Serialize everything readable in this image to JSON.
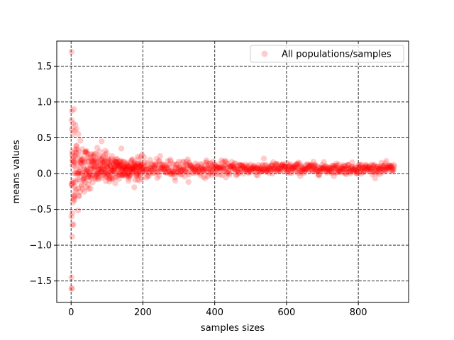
{
  "chart_data": {
    "type": "scatter",
    "xlabel": "samples sizes",
    "ylabel": "means values",
    "xlim": [
      -40,
      940
    ],
    "ylim": [
      -1.8,
      1.85
    ],
    "xticks": [
      0,
      200,
      400,
      600,
      800
    ],
    "yticks": [
      -1.5,
      -1.0,
      -0.5,
      0.0,
      0.5,
      1.0,
      1.5
    ],
    "xtick_labels": [
      "0",
      "200",
      "400",
      "600",
      "800"
    ],
    "ytick_labels": [
      "−1.5",
      "−1.0",
      "−0.5",
      "0.0",
      "0.5",
      "1.0",
      "1.5"
    ],
    "grid": true,
    "legend_position": "top-right",
    "series": [
      {
        "name": "All populations/samples",
        "color": "#ff0000",
        "alpha": 0.2,
        "x_range": [
          1,
          900
        ],
        "mean_level": 0.07,
        "points": [
          [
            1,
            1.7
          ],
          [
            1,
            -1.45
          ],
          [
            1,
            -1.61
          ],
          [
            2,
            -1.6
          ],
          [
            1,
            -0.6
          ],
          [
            3,
            -0.55
          ],
          [
            4,
            -0.72
          ],
          [
            2,
            0.62
          ],
          [
            5,
            0.55
          ],
          [
            8,
            0.9
          ],
          [
            6,
            0.7
          ],
          [
            10,
            0.6
          ],
          [
            12,
            0.68
          ],
          [
            15,
            0.62
          ],
          [
            20,
            0.55
          ],
          [
            3,
            -0.88
          ],
          [
            5,
            -0.4
          ],
          [
            8,
            -0.35
          ],
          [
            10,
            -0.3
          ],
          [
            12,
            -0.25
          ],
          [
            85,
            0.45
          ],
          [
            140,
            0.35
          ],
          [
            95,
            0.32
          ],
          [
            3,
            0.3
          ],
          [
            6,
            -0.1
          ],
          [
            9,
            0.15
          ]
        ]
      }
    ]
  }
}
